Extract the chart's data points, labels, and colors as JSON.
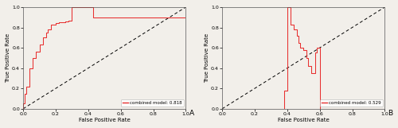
{
  "fig_width": 5.0,
  "fig_height": 1.61,
  "dpi": 100,
  "background_color": "#f2efea",
  "panel_A": {
    "label": "A",
    "xlabel": "False Positive Rate",
    "ylabel": "True Positive Rate",
    "xlim": [
      0,
      1
    ],
    "ylim": [
      0,
      1
    ],
    "xticks": [
      0.0,
      0.2,
      0.4,
      0.6,
      0.8,
      1.0
    ],
    "yticks": [
      0.0,
      0.2,
      0.4,
      0.6,
      0.8,
      1.0
    ],
    "legend_label": "combined model: 0.818",
    "curve_color": "#e83030",
    "diag_color": "black",
    "curve_x": [
      0.0,
      0.0,
      0.01,
      0.01,
      0.02,
      0.02,
      0.04,
      0.04,
      0.06,
      0.06,
      0.08,
      0.08,
      0.1,
      0.1,
      0.12,
      0.12,
      0.14,
      0.14,
      0.15,
      0.15,
      0.17,
      0.17,
      0.2,
      0.2,
      0.22,
      0.22,
      0.26,
      0.26,
      0.28,
      0.28,
      0.3,
      0.3,
      0.43,
      0.43,
      1.0
    ],
    "curve_y": [
      0.0,
      0.05,
      0.05,
      0.15,
      0.15,
      0.22,
      0.22,
      0.4,
      0.4,
      0.5,
      0.5,
      0.56,
      0.56,
      0.63,
      0.63,
      0.7,
      0.7,
      0.75,
      0.75,
      0.78,
      0.78,
      0.83,
      0.83,
      0.84,
      0.84,
      0.85,
      0.85,
      0.86,
      0.86,
      0.87,
      0.87,
      1.0,
      1.0,
      0.9,
      0.9
    ]
  },
  "panel_B": {
    "label": "B",
    "xlabel": "False Positive Rate",
    "ylabel": "True Positive Rate",
    "xlim": [
      0,
      1
    ],
    "ylim": [
      0,
      1
    ],
    "xticks": [
      0.0,
      0.2,
      0.4,
      0.6,
      0.8,
      1.0
    ],
    "yticks": [
      0.0,
      0.2,
      0.4,
      0.6,
      0.8,
      1.0
    ],
    "legend_label": "combined model: 0.529",
    "curve_color": "#e83030",
    "diag_color": "black",
    "curve_x": [
      0.0,
      0.0,
      0.38,
      0.38,
      0.4,
      0.4,
      0.42,
      0.42,
      0.44,
      0.44,
      0.46,
      0.46,
      0.47,
      0.47,
      0.48,
      0.48,
      0.5,
      0.5,
      0.52,
      0.52,
      0.53,
      0.53,
      0.55,
      0.55,
      0.57,
      0.57,
      0.58,
      0.58,
      0.6,
      0.6,
      1.0
    ],
    "curve_y": [
      0.0,
      0.0,
      0.0,
      0.18,
      0.18,
      1.0,
      1.0,
      0.83,
      0.83,
      0.78,
      0.78,
      0.72,
      0.72,
      0.65,
      0.65,
      0.6,
      0.6,
      0.58,
      0.58,
      0.5,
      0.5,
      0.42,
      0.42,
      0.35,
      0.35,
      0.55,
      0.55,
      0.6,
      0.6,
      0.0,
      0.0
    ]
  },
  "tick_fontsize": 4.5,
  "label_fontsize": 5.0,
  "legend_fontsize": 4.0,
  "panel_label_fontsize": 6.5
}
